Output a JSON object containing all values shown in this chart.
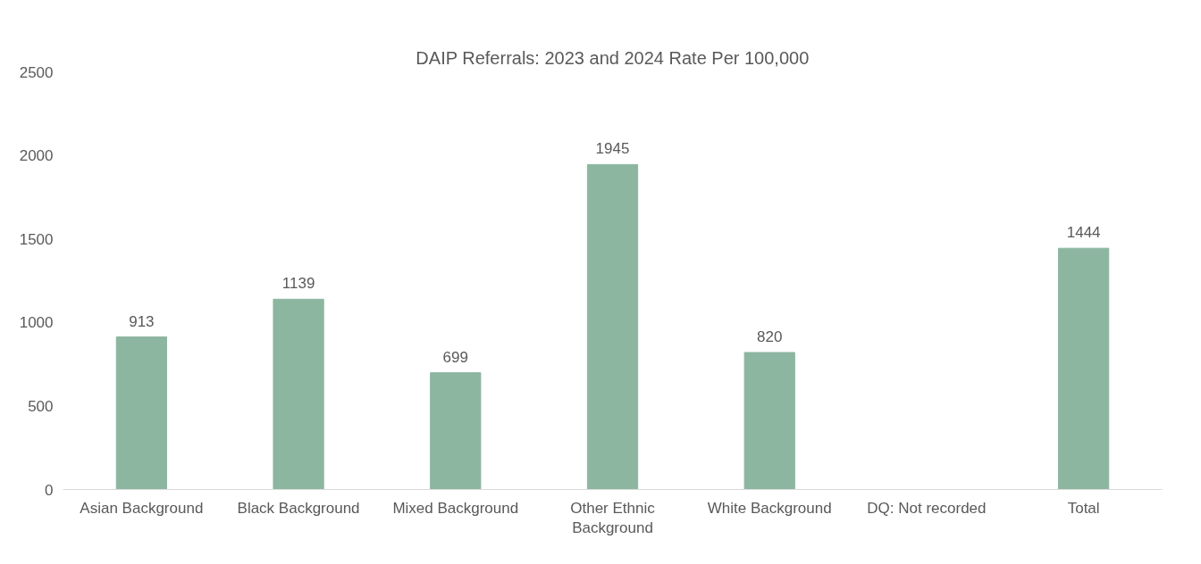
{
  "chart_data": {
    "type": "bar",
    "title": "DAIP Referrals: 2023 and 2024 Rate Per 100,000",
    "categories": [
      "Asian Background",
      "Black Background",
      "Mixed Background",
      "Other Ethnic Background",
      "White Background",
      "DQ: Not recorded",
      "Total"
    ],
    "values": [
      913,
      1139,
      699,
      1945,
      820,
      null,
      1444
    ],
    "color": "#8cb6a0",
    "ylim": [
      0,
      2500
    ],
    "yticks": [
      0,
      500,
      1000,
      1500,
      2000,
      2500
    ],
    "grid": false,
    "data_labels": true
  }
}
